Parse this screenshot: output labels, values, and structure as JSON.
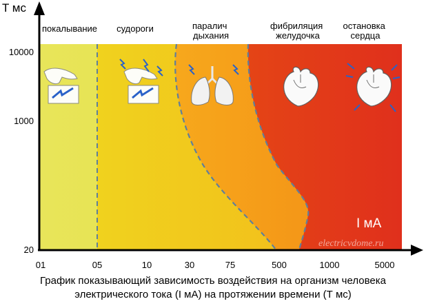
{
  "chart_data": {
    "type": "area",
    "y_axis_title": "T мс",
    "x_axis_title": "I мА",
    "x_tick_labels": [
      "01",
      "05",
      "10",
      "30",
      "75",
      "500",
      "1000",
      "5000"
    ],
    "y_tick_labels": [
      "10000",
      "1000",
      "20"
    ],
    "zones": [
      {
        "label_lines": [
          "покалывание"
        ],
        "color": "#e6e44a",
        "icon": "hand-shock-icon"
      },
      {
        "label_lines": [
          "судороги"
        ],
        "color": "#f2c21c",
        "icon": "hand-strong-shock-icon"
      },
      {
        "label_lines": [
          "паралич",
          "дыхания"
        ],
        "color": "#f59a18",
        "icon": "lungs-icon"
      },
      {
        "label_lines": [
          "фибриляция",
          "желудочка"
        ],
        "color": "#e33a1a",
        "icon": "heart-icon"
      },
      {
        "label_lines": [
          "остановка",
          "сердца"
        ],
        "color": "#e33a1a",
        "icon": "heart-stop-icon"
      }
    ],
    "boundary_color": "#5f7f9c",
    "grid": false
  },
  "watermark": "electricvdome.ru",
  "caption": {
    "line1": "График показывающий зависимость воздействия на организм человека",
    "line2": "электрического тока (I мА) на протяжении времени (Т мс)"
  }
}
